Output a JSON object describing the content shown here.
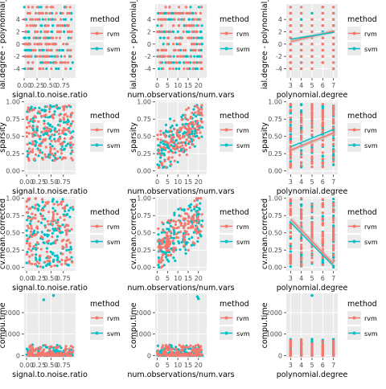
{
  "legend": {
    "title": "method",
    "items": [
      {
        "label": "rvm",
        "color": "#F8766D"
      },
      {
        "label": "svm",
        "color": "#00BFC4"
      }
    ]
  },
  "chart_data": [
    {
      "id": "r0c0",
      "type": "scatter",
      "xlabel": "signal.to.noise.ratio",
      "ylabel": "polynomial.degree - polynomial_d",
      "ylabel_shown": "ial.degree - polynomial_d",
      "xlim": [
        0,
        1
      ],
      "ylim": [
        -5.5,
        6.5
      ],
      "xticks": [
        "0.00",
        "0.25",
        "0.50",
        "0.75"
      ],
      "xtickvals": [
        0,
        0.25,
        0.5,
        0.75
      ],
      "yticks": [
        "4",
        "2",
        "0",
        "-2",
        "-4"
      ],
      "ytickvals": [
        4,
        2,
        0,
        -2,
        -4
      ],
      "x_dist": "uniform",
      "y_dist": "int_band",
      "y_range": [
        -4,
        6
      ]
    },
    {
      "id": "r0c1",
      "type": "scatter",
      "xlabel": "num.observations/num.vars",
      "ylabel": "polynomial.degree - polynomial_d",
      "ylabel_shown": "ial.degree - polynomial_d",
      "xlim": [
        -1,
        24
      ],
      "ylim": [
        -5.5,
        6.5
      ],
      "xticks": [
        "0",
        "5",
        "10",
        "15",
        "20"
      ],
      "xtickvals": [
        0,
        5,
        10,
        15,
        20
      ],
      "yticks": [
        "4",
        "2",
        "0",
        "-2",
        "-4"
      ],
      "ytickvals": [
        4,
        2,
        0,
        -2,
        -4
      ],
      "x_dist": "uniform_22",
      "y_dist": "int_band",
      "y_range": [
        -4,
        6
      ]
    },
    {
      "id": "r0c2",
      "type": "scatter",
      "xlabel": "polynomial.degree",
      "ylabel": "polynomial.degree - polynomial_d",
      "ylabel_shown": "ial.degree - polynomial_d",
      "xlim": [
        2.6,
        7.4
      ],
      "ylim": [
        -5.5,
        6.5
      ],
      "xticks": [
        "3",
        "4",
        "5",
        "6",
        "7"
      ],
      "xtickvals": [
        3,
        4,
        5,
        6,
        7
      ],
      "yticks": [
        "4",
        "2",
        "0",
        "-2",
        "-4"
      ],
      "ytickvals": [
        4,
        2,
        0,
        -2,
        -4
      ],
      "x_dist": "int_3_7",
      "y_dist": "int_per_x",
      "y_range": [
        -4,
        6
      ],
      "trend": {
        "rvm": [
          [
            3,
            0.4
          ],
          [
            7,
            2.1
          ]
        ],
        "svm": [
          [
            3,
            0.8
          ],
          [
            7,
            1.9
          ]
        ]
      }
    },
    {
      "id": "r1c0",
      "type": "scatter",
      "xlabel": "signal.to.noise.ratio",
      "ylabel": "sparsity",
      "xlim": [
        -0.05,
        1
      ],
      "ylim": [
        -0.05,
        1.02
      ],
      "xticks": [
        "0.00",
        "0.25",
        "0.50",
        "0.75"
      ],
      "xtickvals": [
        0,
        0.25,
        0.5,
        0.75
      ],
      "yticks": [
        "1.00",
        "0.75",
        "0.50",
        "0.25",
        "0.00"
      ],
      "ytickvals": [
        1,
        0.75,
        0.5,
        0.25,
        0
      ],
      "x_dist": "uniform",
      "y_dist": "band",
      "y_range": [
        0.15,
        0.95
      ]
    },
    {
      "id": "r1c1",
      "type": "scatter",
      "xlabel": "num.observations/num.vars",
      "ylabel": "sparsity",
      "xlim": [
        -1,
        24
      ],
      "ylim": [
        -0.05,
        1.02
      ],
      "xticks": [
        "0",
        "5",
        "10",
        "15",
        "20"
      ],
      "xtickvals": [
        0,
        5,
        10,
        15,
        20
      ],
      "yticks": [
        "1.00",
        "0.75",
        "0.50",
        "0.25",
        "0.00"
      ],
      "ytickvals": [
        1,
        0.75,
        0.5,
        0.25,
        0
      ],
      "x_dist": "uniform_22",
      "y_dist": "rising",
      "y_range": [
        0.05,
        0.95
      ]
    },
    {
      "id": "r1c2",
      "type": "scatter",
      "xlabel": "polynomial.degree",
      "ylabel": "sparsity",
      "xlim": [
        2.6,
        7.4
      ],
      "ylim": [
        -0.05,
        1.02
      ],
      "xticks": [
        "3",
        "4",
        "5",
        "6",
        "7"
      ],
      "xtickvals": [
        3,
        4,
        5,
        6,
        7
      ],
      "yticks": [
        "1.00",
        "0.75",
        "0.50",
        "0.25",
        "0.00"
      ],
      "ytickvals": [
        1,
        0.75,
        0.5,
        0.25,
        0
      ],
      "x_dist": "int_3_7",
      "y_dist": "column",
      "y_range": [
        0.05,
        0.97
      ],
      "trend": {
        "rvm": [
          [
            3,
            0.3
          ],
          [
            7,
            0.55
          ]
        ],
        "svm": [
          [
            3,
            0.35
          ],
          [
            7,
            0.6
          ]
        ]
      }
    },
    {
      "id": "r2c0",
      "type": "scatter",
      "xlabel": "signal.to.noise.ratio",
      "ylabel": "cv.mean.corrected",
      "xlim": [
        -0.05,
        1
      ],
      "ylim": [
        -0.05,
        1.02
      ],
      "xticks": [
        "0.00",
        "0.25",
        "0.50",
        "0.75"
      ],
      "xtickvals": [
        0,
        0.25,
        0.5,
        0.75
      ],
      "yticks": [
        "1.00",
        "0.75",
        "0.50",
        "0.25",
        "0.00"
      ],
      "ytickvals": [
        1,
        0.75,
        0.5,
        0.25,
        0
      ],
      "x_dist": "uniform",
      "y_dist": "band",
      "y_range": [
        0.0,
        1.0
      ]
    },
    {
      "id": "r2c1",
      "type": "scatter",
      "xlabel": "num.observations/num.vars",
      "ylabel": "cv.mean.corrected",
      "xlim": [
        -1,
        24
      ],
      "ylim": [
        -0.05,
        1.02
      ],
      "xticks": [
        "0",
        "5",
        "10",
        "15",
        "20"
      ],
      "xtickvals": [
        0,
        5,
        10,
        15,
        20
      ],
      "yticks": [
        "1.00",
        "0.75",
        "0.50",
        "0.25",
        "0.00"
      ],
      "ytickvals": [
        1,
        0.75,
        0.5,
        0.25,
        0
      ],
      "x_dist": "uniform_22",
      "y_dist": "rising",
      "y_range": [
        0.0,
        1.0
      ]
    },
    {
      "id": "r2c2",
      "type": "scatter",
      "xlabel": "polynomial.degree",
      "ylabel": "cv.mean.corrected",
      "xlim": [
        2.6,
        7.4
      ],
      "ylim": [
        -0.05,
        1.02
      ],
      "xticks": [
        "3",
        "4",
        "5",
        "6",
        "7"
      ],
      "xtickvals": [
        3,
        4,
        5,
        6,
        7
      ],
      "yticks": [
        "1.00",
        "0.75",
        "0.50",
        "0.25",
        "0.00"
      ],
      "ytickvals": [
        1,
        0.75,
        0.5,
        0.25,
        0
      ],
      "x_dist": "int_3_7",
      "y_dist": "column",
      "y_range": [
        0.0,
        1.0
      ],
      "trend": {
        "rvm": [
          [
            3,
            0.7
          ],
          [
            7,
            0.05
          ]
        ],
        "svm": [
          [
            3,
            0.65
          ],
          [
            7,
            0.02
          ]
        ]
      }
    },
    {
      "id": "r3c0",
      "type": "scatter",
      "xlabel": "signal.to.noise.ratio",
      "ylabel": "compu.time",
      "xlim": [
        -0.05,
        1
      ],
      "ylim": [
        -100,
        2900
      ],
      "xticks": [
        "0.00",
        "0.25",
        "0.50",
        "0.75"
      ],
      "xtickvals": [
        0,
        0.25,
        0.5,
        0.75
      ],
      "yticks": [
        "2000",
        "1000",
        "0"
      ],
      "ytickvals": [
        2000,
        1000,
        0
      ],
      "x_dist": "uniform",
      "y_dist": "time",
      "y_range": [
        0,
        500
      ],
      "outliers": [
        [
          0.35,
          2600
        ],
        [
          0.55,
          2800
        ]
      ]
    },
    {
      "id": "r3c1",
      "type": "scatter",
      "xlabel": "num.observations/num.vars",
      "ylabel": "compu.time",
      "xlim": [
        -1,
        24
      ],
      "ylim": [
        -100,
        2900
      ],
      "xticks": [
        "0",
        "5",
        "10",
        "15",
        "20"
      ],
      "xtickvals": [
        0,
        5,
        10,
        15,
        20
      ],
      "yticks": [
        "2000",
        "1000",
        "0"
      ],
      "ytickvals": [
        2000,
        1000,
        0
      ],
      "x_dist": "uniform_22",
      "y_dist": "time",
      "y_range": [
        0,
        500
      ],
      "outliers": [
        [
          19.5,
          2750
        ],
        [
          20,
          2650
        ]
      ]
    },
    {
      "id": "r3c2",
      "type": "scatter",
      "xlabel": "polynomial.degree",
      "ylabel": "compu.time",
      "xlim": [
        2.6,
        7.4
      ],
      "ylim": [
        -100,
        2900
      ],
      "xticks": [
        "3",
        "4",
        "5",
        "6",
        "7"
      ],
      "xtickvals": [
        3,
        4,
        5,
        6,
        7
      ],
      "yticks": [
        "2000",
        "1000",
        "0"
      ],
      "ytickvals": [
        2000,
        1000,
        0
      ],
      "x_dist": "int_3_7",
      "y_dist": "time_col",
      "y_range": [
        0,
        800
      ],
      "outliers": [
        [
          5,
          2800
        ]
      ]
    }
  ]
}
